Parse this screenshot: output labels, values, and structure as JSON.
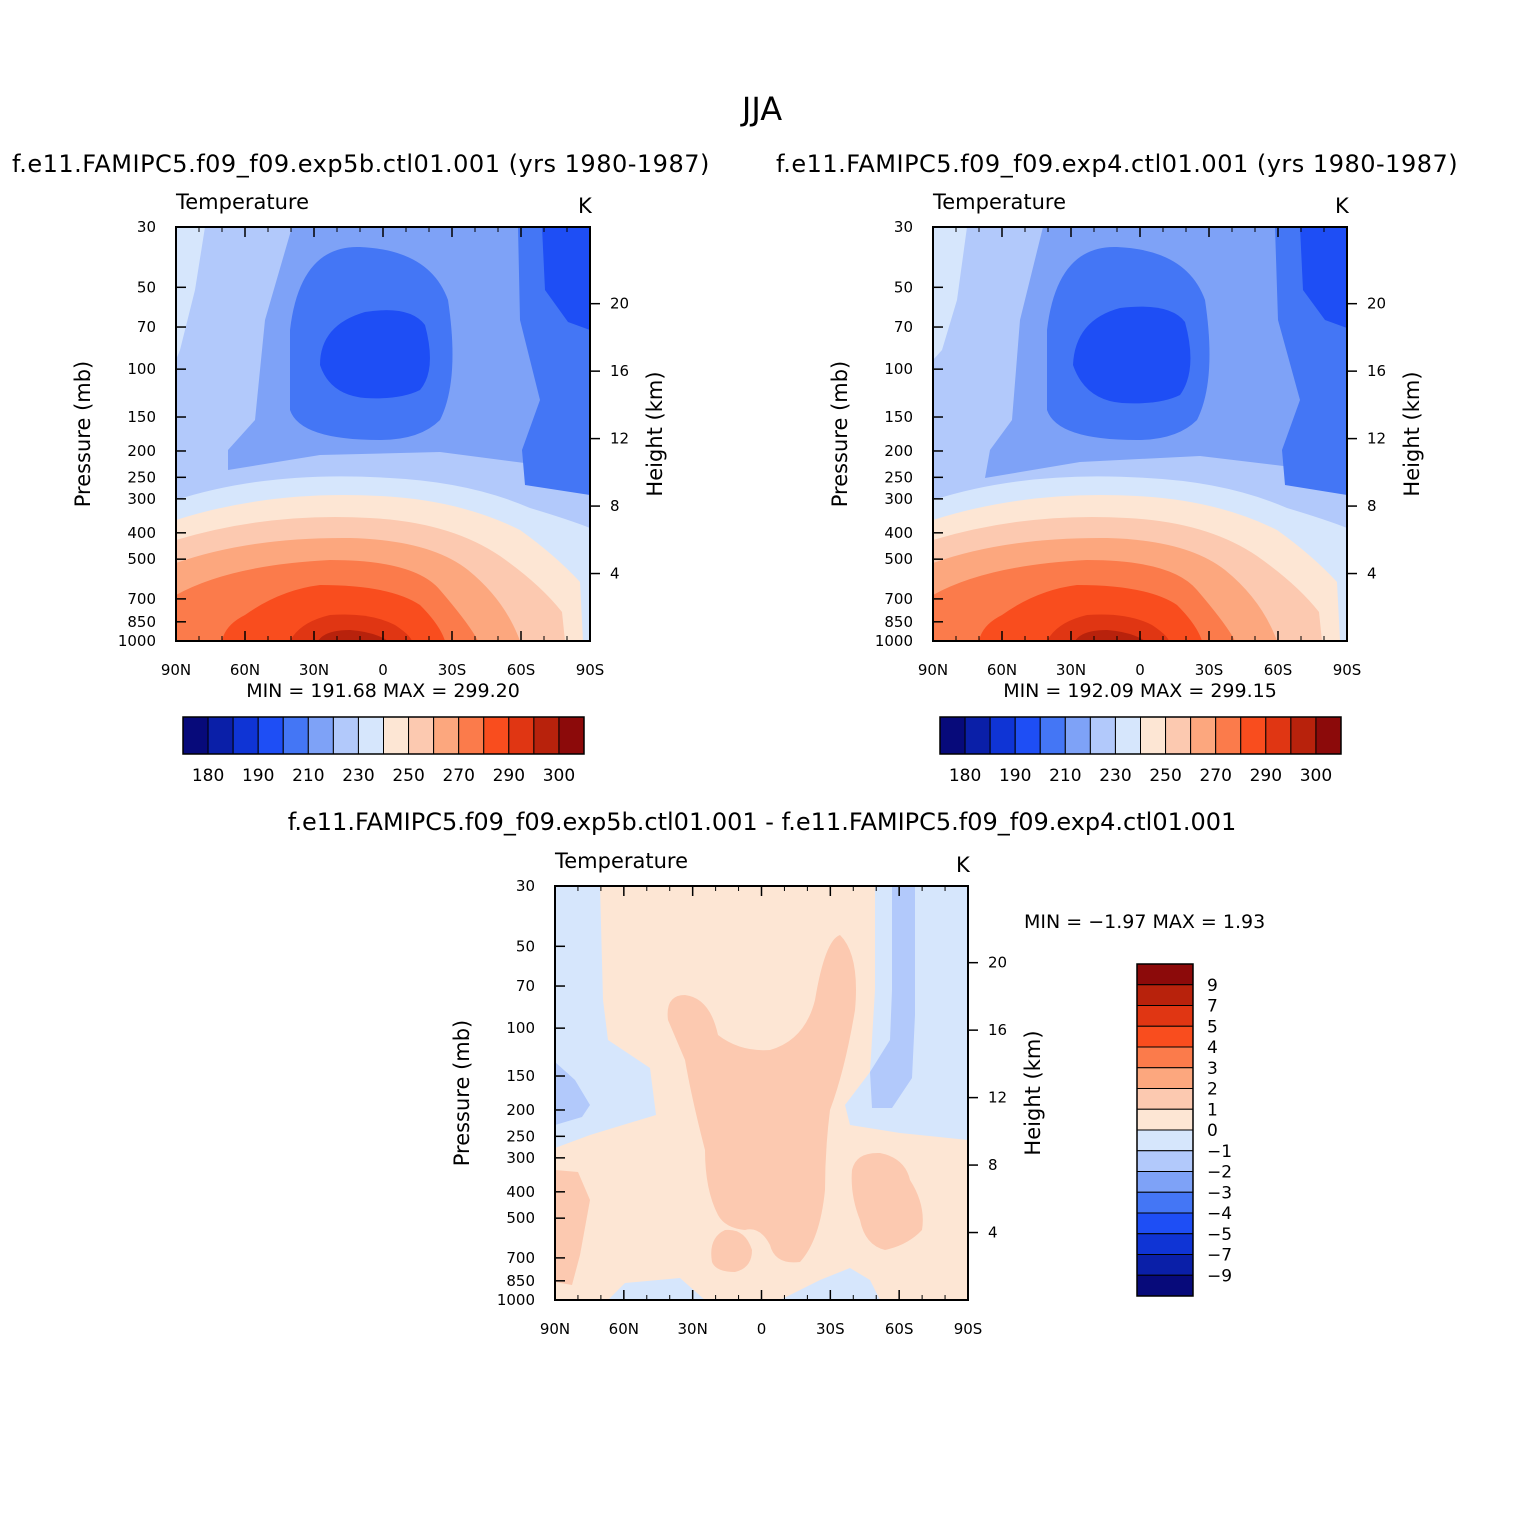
{
  "title": "JJA",
  "diff_title": "f.e11.FAMIPC5.f09_f09.exp5b.ctl01.001 - f.e11.FAMIPC5.f09_f09.exp4.ctl01.001",
  "chart_data": [
    {
      "type": "contour",
      "case": "f.e11.FAMIPC5.f09_f09.exp5b.ctl01.001 (yrs 1980-1987)",
      "variable": "Temperature",
      "units": "K",
      "xlabel": "",
      "ylabel": "Pressure (mb)",
      "ylabel_right": "Height (km)",
      "x_ticks": [
        "90N",
        "60N",
        "30N",
        "0",
        "30S",
        "60S",
        "90S"
      ],
      "pressure_ticks": [
        30,
        50,
        70,
        100,
        150,
        200,
        250,
        300,
        400,
        500,
        700,
        850,
        1000
      ],
      "height_ticks": [
        20,
        16,
        12,
        8,
        4
      ],
      "ylim_mb": [
        1000,
        30
      ],
      "min": "191.68",
      "max": "299.20",
      "levels": [
        180,
        185,
        190,
        200,
        210,
        220,
        230,
        240,
        250,
        260,
        270,
        280,
        290,
        295,
        300
      ],
      "colorbar_labels": [
        "180",
        "190",
        "210",
        "230",
        "250",
        "270",
        "290",
        "300"
      ]
    },
    {
      "type": "contour",
      "case": "f.e11.FAMIPC5.f09_f09.exp4.ctl01.001 (yrs 1980-1987)",
      "variable": "Temperature",
      "units": "K",
      "xlabel": "",
      "ylabel": "Pressure (mb)",
      "ylabel_right": "Height (km)",
      "x_ticks": [
        "90N",
        "60N",
        "30N",
        "0",
        "30S",
        "60S",
        "90S"
      ],
      "pressure_ticks": [
        30,
        50,
        70,
        100,
        150,
        200,
        250,
        300,
        400,
        500,
        700,
        850,
        1000
      ],
      "height_ticks": [
        20,
        16,
        12,
        8,
        4
      ],
      "ylim_mb": [
        1000,
        30
      ],
      "min": "192.09",
      "max": "299.15",
      "levels": [
        180,
        185,
        190,
        200,
        210,
        220,
        230,
        240,
        250,
        260,
        270,
        280,
        290,
        295,
        300
      ],
      "colorbar_labels": [
        "180",
        "190",
        "210",
        "230",
        "250",
        "270",
        "290",
        "300"
      ]
    },
    {
      "type": "contour",
      "case": "difference",
      "variable": "Temperature",
      "units": "K",
      "xlabel": "",
      "ylabel": "Pressure (mb)",
      "ylabel_right": "Height (km)",
      "x_ticks": [
        "90N",
        "60N",
        "30N",
        "0",
        "30S",
        "60S",
        "90S"
      ],
      "pressure_ticks": [
        30,
        50,
        70,
        100,
        150,
        200,
        250,
        300,
        400,
        500,
        700,
        850,
        1000
      ],
      "height_ticks": [
        20,
        16,
        12,
        8,
        4
      ],
      "ylim_mb": [
        1000,
        30
      ],
      "min_label": "MIN =",
      "min": "-1.97",
      "max_label": "MAX =",
      "max": "1.93",
      "colorbar_labels": [
        "9",
        "7",
        "5",
        "4",
        "3",
        "2",
        "1",
        "0",
        "-1",
        "-2",
        "-3",
        "-4",
        "-5",
        "-7",
        "-9"
      ]
    }
  ],
  "colors": {
    "fill_levels": [
      "#070a7a",
      "#0a1fa8",
      "#0f34d5",
      "#1e4ef5",
      "#4476f5",
      "#7ea2f7",
      "#b2c9fb",
      "#d6e6fc",
      "#fde6d4",
      "#fcc9b0",
      "#fca77e",
      "#fb7b4b",
      "#f94d1e",
      "#e03613",
      "#b8220c",
      "#8c0a0a"
    ],
    "diff_fills": [
      "#8c0a0a",
      "#b8220c",
      "#e03613",
      "#f94d1e",
      "#fb7b4b",
      "#fca77e",
      "#fcc9b0",
      "#fde6d4",
      "#d6e6fc",
      "#b2c9fb",
      "#7ea2f7",
      "#4476f5",
      "#1e4ef5",
      "#0f34d5",
      "#0a1fa8",
      "#070a7a"
    ]
  }
}
